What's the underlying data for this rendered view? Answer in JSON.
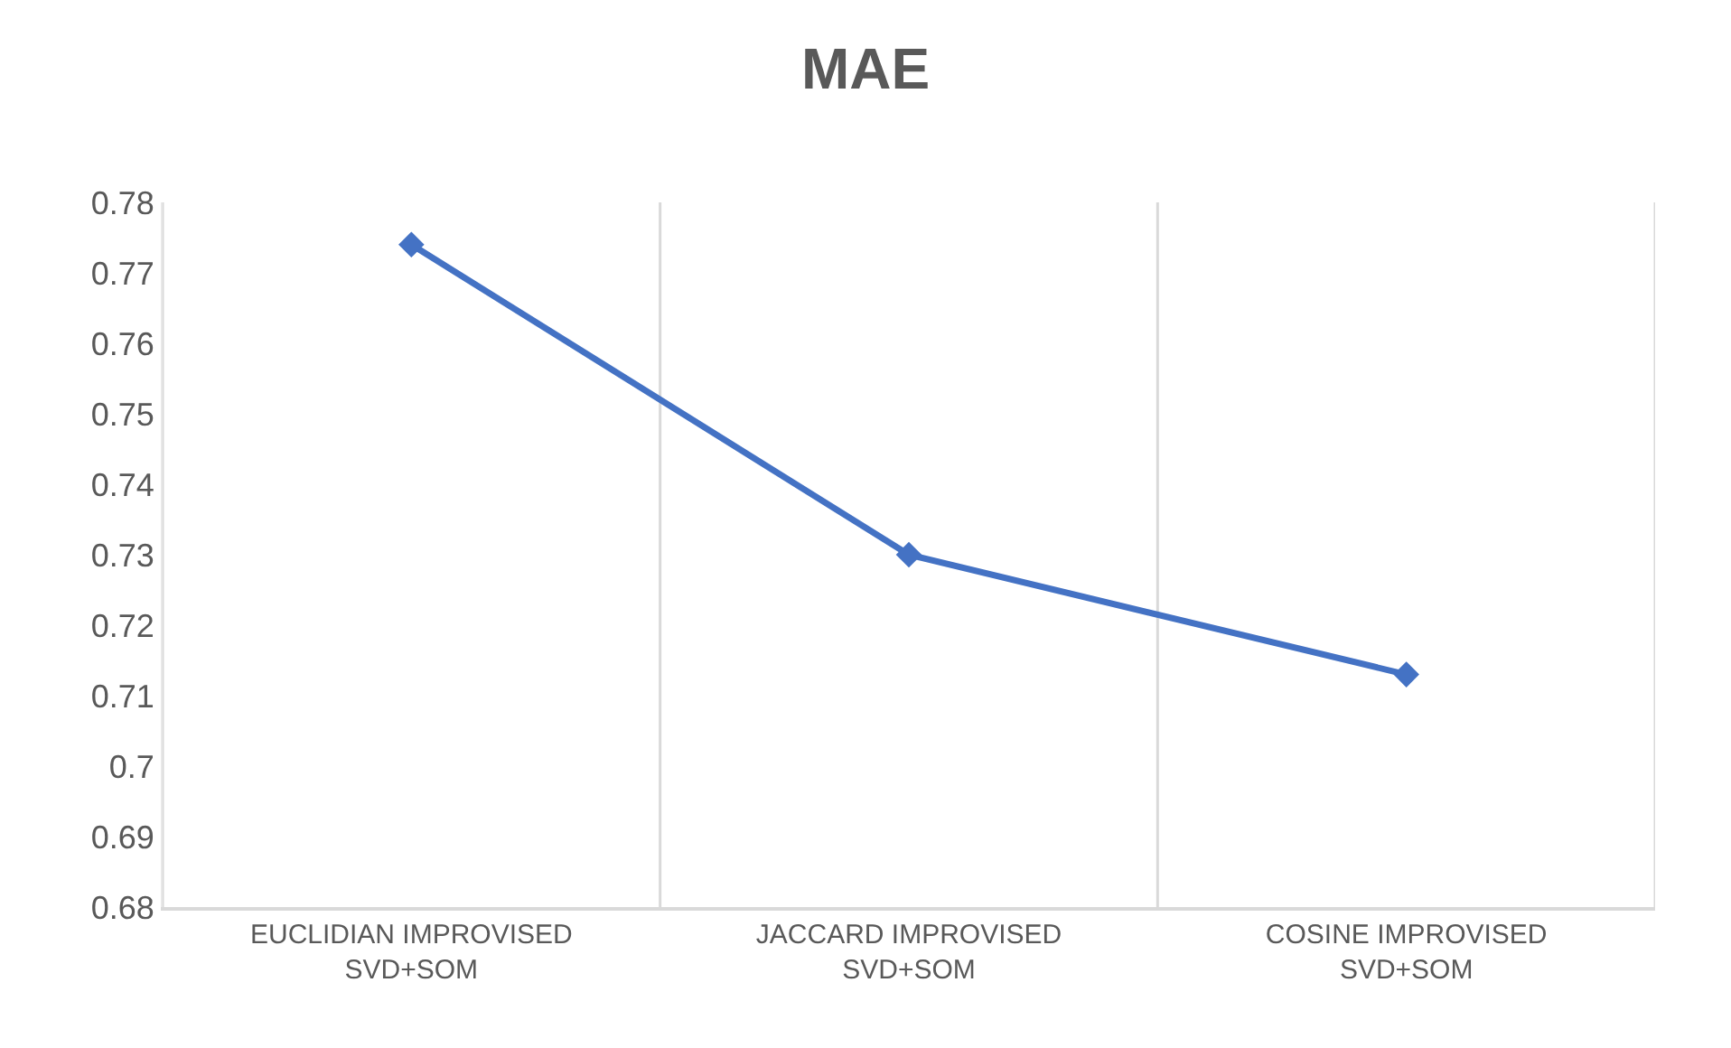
{
  "chart_data": {
    "type": "line",
    "title": "MAE",
    "categories": [
      "EUCLIDIAN IMPROVISED\nSVD+SOM",
      "JACCARD IMPROVISED\nSVD+SOM",
      "COSINE IMPROVISED\nSVD+SOM"
    ],
    "series": [
      {
        "color": "#4472c4",
        "values": [
          0.774,
          0.73,
          0.713
        ]
      }
    ],
    "ylim": [
      0.68,
      0.78
    ],
    "yticks": [
      0.68,
      0.69,
      0.7,
      0.71,
      0.72,
      0.73,
      0.74,
      0.75,
      0.76,
      0.77,
      0.78
    ],
    "grid": "x",
    "marker": "diamond",
    "line_style": "solid"
  }
}
